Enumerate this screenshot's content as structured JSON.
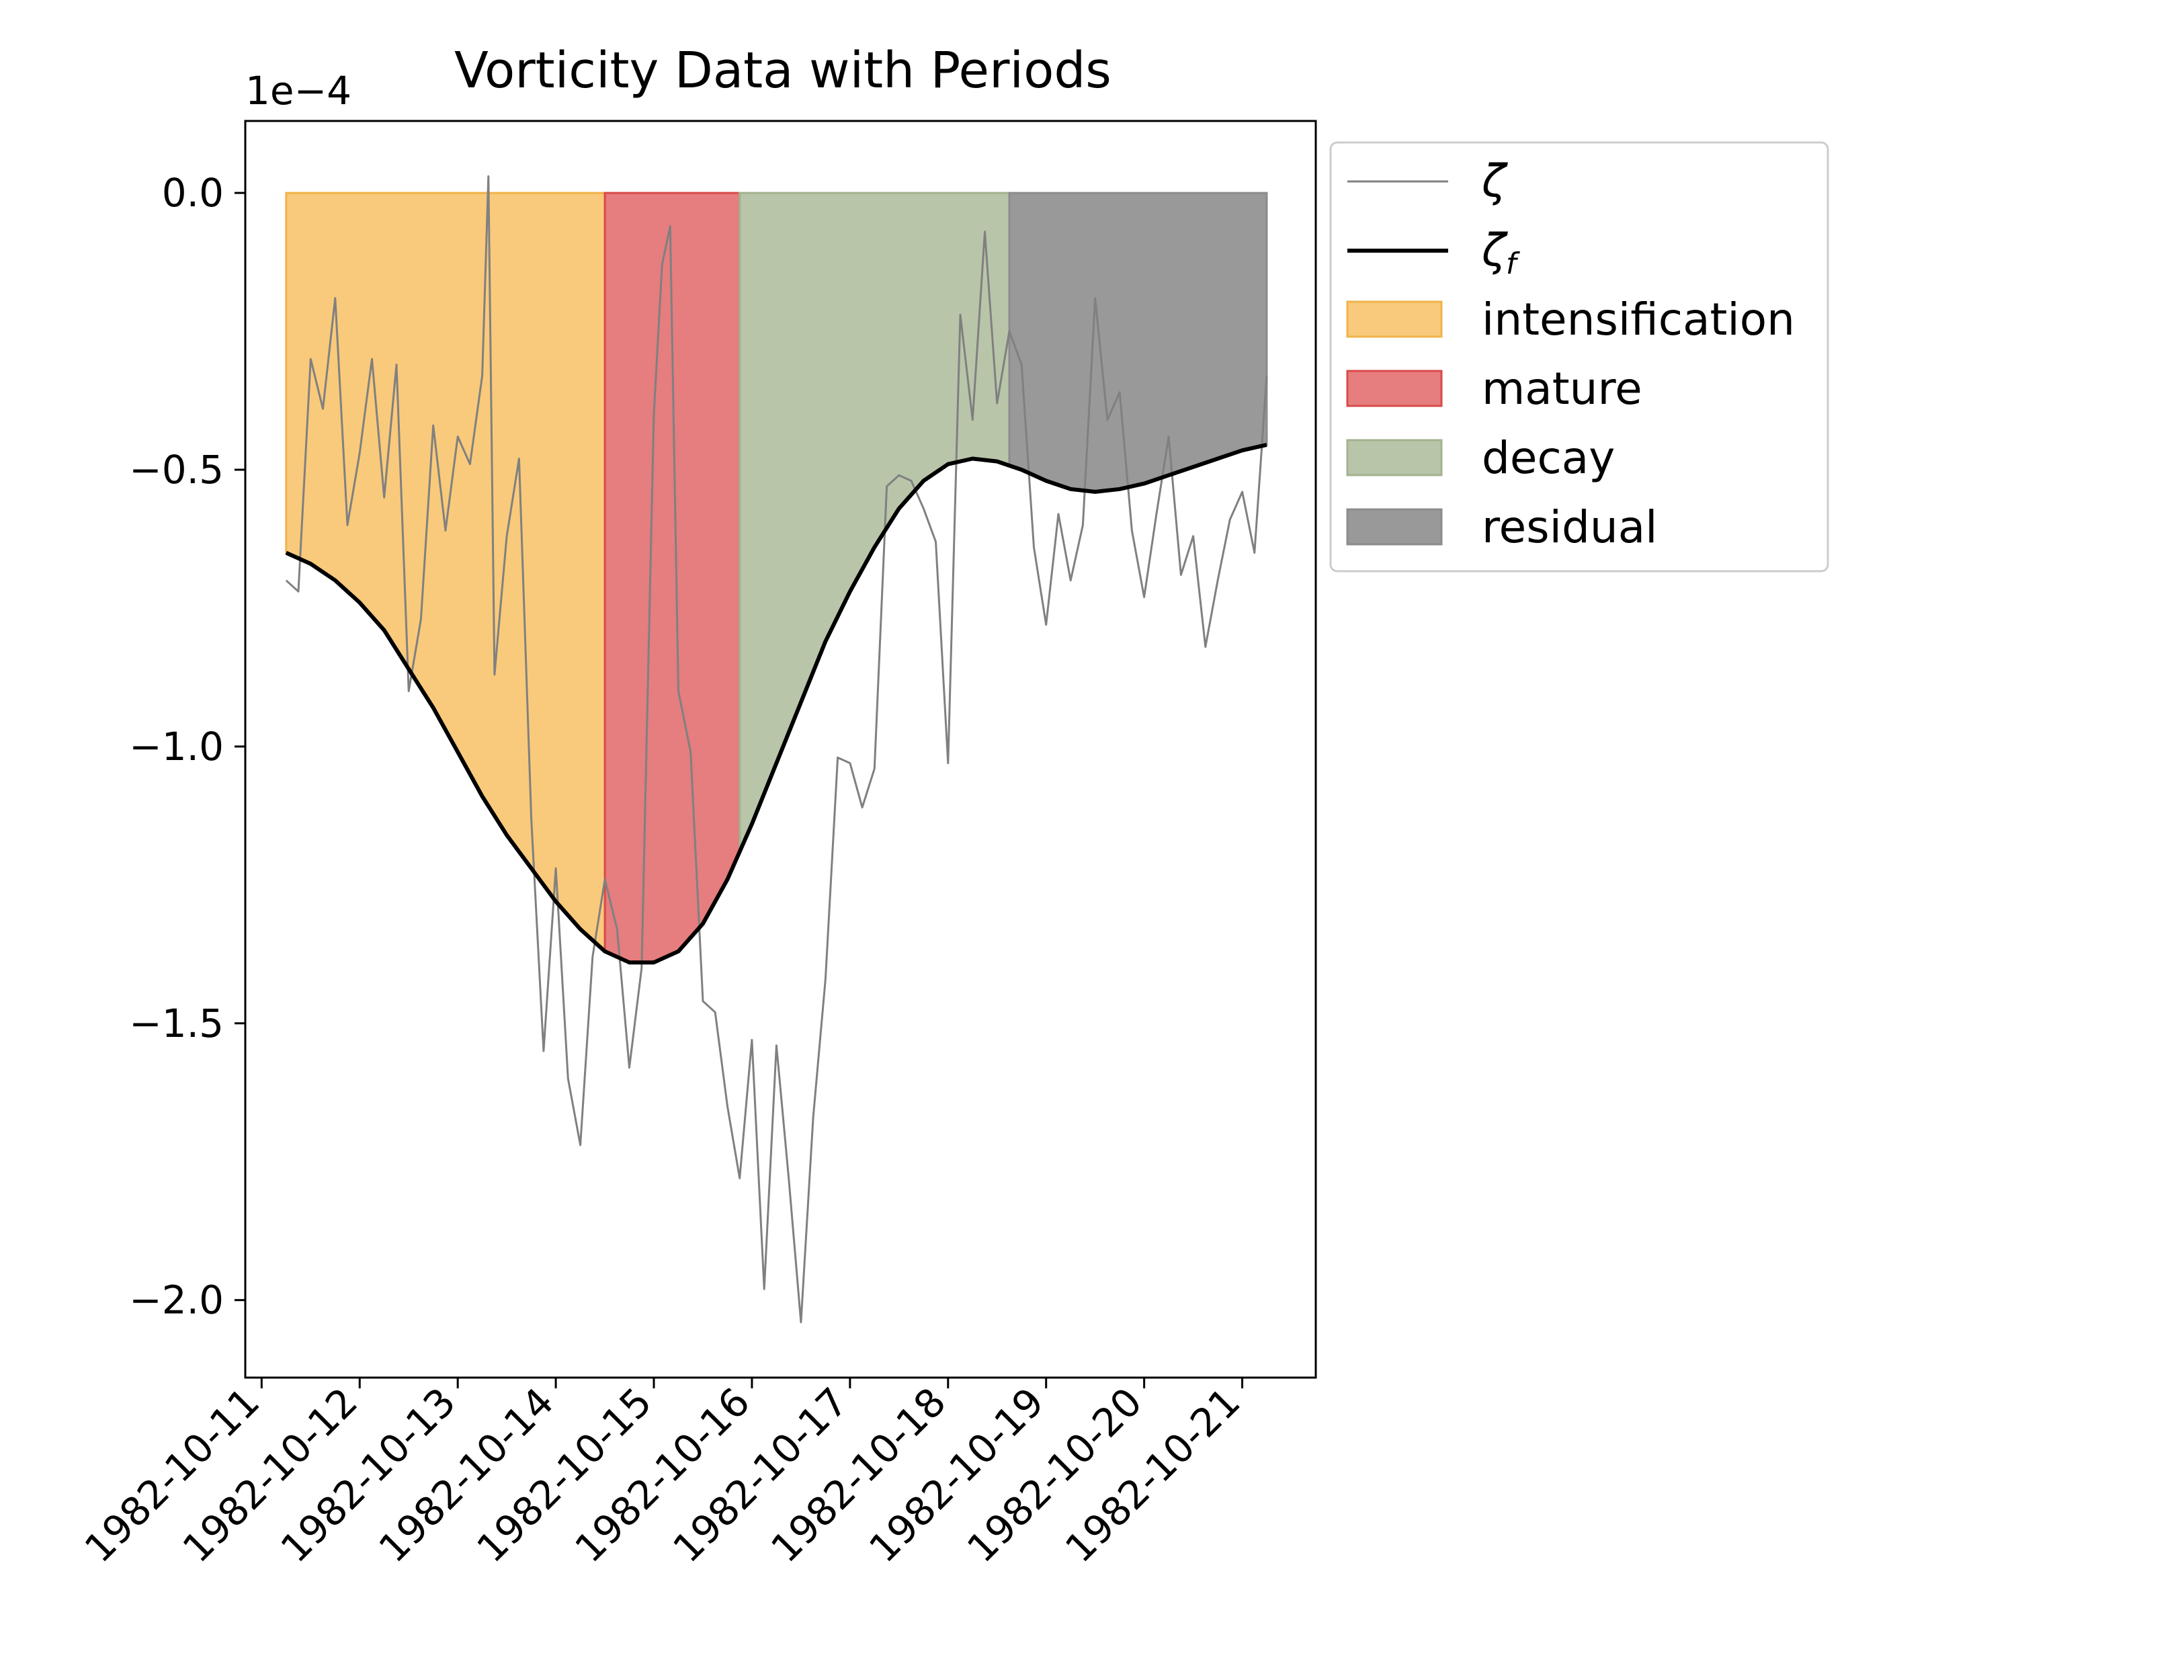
{
  "chart_data": {
    "type": "line",
    "title": "Vorticity Data with Periods",
    "xlabel": "",
    "ylabel": "",
    "y_scale_label": "1e−4",
    "x_axis": {
      "type": "date",
      "range": [
        "1982-10-10T20:00",
        "1982-10-21T18:00"
      ],
      "tick_labels": [
        "1982-10-11",
        "1982-10-12",
        "1982-10-13",
        "1982-10-14",
        "1982-10-15",
        "1982-10-16",
        "1982-10-17",
        "1982-10-18",
        "1982-10-19",
        "1982-10-20",
        "1982-10-21"
      ]
    },
    "y_axis": {
      "range": [
        -2.14,
        0.13
      ],
      "ticks": [
        0.0,
        -0.5,
        -1.0,
        -1.5,
        -2.0
      ],
      "tick_labels": [
        "0.0",
        "−0.5",
        "−1.0",
        "−1.5",
        "−2.0"
      ]
    },
    "grid": false,
    "legend": {
      "placement": "outside upper right"
    },
    "periods": [
      {
        "name": "intensification",
        "start": "1982-10-11T06:00",
        "end": "1982-10-14T12:00",
        "color": "#f5a623",
        "edge": "#f0b34a"
      },
      {
        "name": "mature",
        "start": "1982-10-14T12:00",
        "end": "1982-10-15T21:00",
        "color": "#d62728",
        "edge": "#d94a4a"
      },
      {
        "name": "decay",
        "start": "1982-10-15T21:00",
        "end": "1982-10-18T15:00",
        "color": "#8a9e70",
        "edge": "#a3b38f"
      },
      {
        "name": "residual",
        "start": "1982-10-18T15:00",
        "end": "1982-10-21T06:00",
        "color": "#555555",
        "edge": "#8c8c8c"
      }
    ],
    "series": [
      {
        "name": "ζ",
        "color": "#808080",
        "points": [
          [
            "1982-10-11T06:00",
            -0.7
          ],
          [
            "1982-10-11T09:00",
            -0.72
          ],
          [
            "1982-10-11T12:00",
            -0.3
          ],
          [
            "1982-10-11T15:00",
            -0.39
          ],
          [
            "1982-10-11T18:00",
            -0.19
          ],
          [
            "1982-10-11T21:00",
            -0.6
          ],
          [
            "1982-10-12T00:00",
            -0.47
          ],
          [
            "1982-10-12T03:00",
            -0.3
          ],
          [
            "1982-10-12T06:00",
            -0.55
          ],
          [
            "1982-10-12T09:00",
            -0.31
          ],
          [
            "1982-10-12T12:00",
            -0.9
          ],
          [
            "1982-10-12T15:00",
            -0.77
          ],
          [
            "1982-10-12T18:00",
            -0.42
          ],
          [
            "1982-10-12T21:00",
            -0.61
          ],
          [
            "1982-10-13T00:00",
            -0.44
          ],
          [
            "1982-10-13T03:00",
            -0.49
          ],
          [
            "1982-10-13T06:00",
            -0.33
          ],
          [
            "1982-10-13T07:30",
            0.03
          ],
          [
            "1982-10-13T09:00",
            -0.87
          ],
          [
            "1982-10-13T12:00",
            -0.62
          ],
          [
            "1982-10-13T15:00",
            -0.48
          ],
          [
            "1982-10-13T18:00",
            -1.13
          ],
          [
            "1982-10-13T21:00",
            -1.55
          ],
          [
            "1982-10-14T00:00",
            -1.22
          ],
          [
            "1982-10-14T03:00",
            -1.6
          ],
          [
            "1982-10-14T06:00",
            -1.72
          ],
          [
            "1982-10-14T09:00",
            -1.38
          ],
          [
            "1982-10-14T12:00",
            -1.24
          ],
          [
            "1982-10-14T15:00",
            -1.33
          ],
          [
            "1982-10-14T18:00",
            -1.58
          ],
          [
            "1982-10-14T21:00",
            -1.4
          ],
          [
            "1982-10-15T00:00",
            -0.4
          ],
          [
            "1982-10-15T02:00",
            -0.13
          ],
          [
            "1982-10-15T04:00",
            -0.06
          ],
          [
            "1982-10-15T06:00",
            -0.9
          ],
          [
            "1982-10-15T09:00",
            -1.01
          ],
          [
            "1982-10-15T12:00",
            -1.46
          ],
          [
            "1982-10-15T15:00",
            -1.48
          ],
          [
            "1982-10-15T18:00",
            -1.65
          ],
          [
            "1982-10-15T21:00",
            -1.78
          ],
          [
            "1982-10-16T00:00",
            -1.53
          ],
          [
            "1982-10-16T03:00",
            -1.98
          ],
          [
            "1982-10-16T06:00",
            -1.54
          ],
          [
            "1982-10-16T09:00",
            -1.78
          ],
          [
            "1982-10-16T12:00",
            -2.04
          ],
          [
            "1982-10-16T15:00",
            -1.67
          ],
          [
            "1982-10-16T18:00",
            -1.42
          ],
          [
            "1982-10-16T21:00",
            -1.02
          ],
          [
            "1982-10-17T00:00",
            -1.03
          ],
          [
            "1982-10-17T03:00",
            -1.11
          ],
          [
            "1982-10-17T06:00",
            -1.04
          ],
          [
            "1982-10-17T09:00",
            -0.53
          ],
          [
            "1982-10-17T12:00",
            -0.51
          ],
          [
            "1982-10-17T15:00",
            -0.52
          ],
          [
            "1982-10-17T18:00",
            -0.57
          ],
          [
            "1982-10-17T21:00",
            -0.63
          ],
          [
            "1982-10-18T00:00",
            -1.03
          ],
          [
            "1982-10-18T03:00",
            -0.22
          ],
          [
            "1982-10-18T06:00",
            -0.41
          ],
          [
            "1982-10-18T09:00",
            -0.07
          ],
          [
            "1982-10-18T12:00",
            -0.38
          ],
          [
            "1982-10-18T15:00",
            -0.25
          ],
          [
            "1982-10-18T18:00",
            -0.31
          ],
          [
            "1982-10-18T21:00",
            -0.64
          ],
          [
            "1982-10-19T00:00",
            -0.78
          ],
          [
            "1982-10-19T03:00",
            -0.58
          ],
          [
            "1982-10-19T06:00",
            -0.7
          ],
          [
            "1982-10-19T09:00",
            -0.6
          ],
          [
            "1982-10-19T12:00",
            -0.19
          ],
          [
            "1982-10-19T15:00",
            -0.41
          ],
          [
            "1982-10-19T18:00",
            -0.36
          ],
          [
            "1982-10-19T21:00",
            -0.61
          ],
          [
            "1982-10-20T00:00",
            -0.73
          ],
          [
            "1982-10-20T03:00",
            -0.58
          ],
          [
            "1982-10-20T06:00",
            -0.44
          ],
          [
            "1982-10-20T09:00",
            -0.69
          ],
          [
            "1982-10-20T12:00",
            -0.62
          ],
          [
            "1982-10-20T15:00",
            -0.82
          ],
          [
            "1982-10-20T18:00",
            -0.7
          ],
          [
            "1982-10-20T21:00",
            -0.59
          ],
          [
            "1982-10-21T00:00",
            -0.54
          ],
          [
            "1982-10-21T03:00",
            -0.65
          ],
          [
            "1982-10-21T06:00",
            -0.33
          ]
        ]
      },
      {
        "name": "ζ_f",
        "color": "#000000",
        "points": [
          [
            "1982-10-11T06:00",
            -0.65
          ],
          [
            "1982-10-11T12:00",
            -0.67
          ],
          [
            "1982-10-11T18:00",
            -0.7
          ],
          [
            "1982-10-12T00:00",
            -0.74
          ],
          [
            "1982-10-12T06:00",
            -0.79
          ],
          [
            "1982-10-12T12:00",
            -0.86
          ],
          [
            "1982-10-12T18:00",
            -0.93
          ],
          [
            "1982-10-13T00:00",
            -1.01
          ],
          [
            "1982-10-13T06:00",
            -1.09
          ],
          [
            "1982-10-13T12:00",
            -1.16
          ],
          [
            "1982-10-13T18:00",
            -1.22
          ],
          [
            "1982-10-14T00:00",
            -1.28
          ],
          [
            "1982-10-14T06:00",
            -1.33
          ],
          [
            "1982-10-14T12:00",
            -1.37
          ],
          [
            "1982-10-14T18:00",
            -1.39
          ],
          [
            "1982-10-15T00:00",
            -1.39
          ],
          [
            "1982-10-15T06:00",
            -1.37
          ],
          [
            "1982-10-15T12:00",
            -1.32
          ],
          [
            "1982-10-15T18:00",
            -1.24
          ],
          [
            "1982-10-16T00:00",
            -1.14
          ],
          [
            "1982-10-16T06:00",
            -1.03
          ],
          [
            "1982-10-16T12:00",
            -0.92
          ],
          [
            "1982-10-16T18:00",
            -0.81
          ],
          [
            "1982-10-17T00:00",
            -0.72
          ],
          [
            "1982-10-17T06:00",
            -0.64
          ],
          [
            "1982-10-17T12:00",
            -0.57
          ],
          [
            "1982-10-17T18:00",
            -0.52
          ],
          [
            "1982-10-18T00:00",
            -0.49
          ],
          [
            "1982-10-18T06:00",
            -0.48
          ],
          [
            "1982-10-18T12:00",
            -0.485
          ],
          [
            "1982-10-18T18:00",
            -0.5
          ],
          [
            "1982-10-19T00:00",
            -0.52
          ],
          [
            "1982-10-19T06:00",
            -0.535
          ],
          [
            "1982-10-19T12:00",
            -0.54
          ],
          [
            "1982-10-19T18:00",
            -0.535
          ],
          [
            "1982-10-20T00:00",
            -0.525
          ],
          [
            "1982-10-20T06:00",
            -0.51
          ],
          [
            "1982-10-20T12:00",
            -0.495
          ],
          [
            "1982-10-20T18:00",
            -0.48
          ],
          [
            "1982-10-21T00:00",
            -0.465
          ],
          [
            "1982-10-21T06:00",
            -0.455
          ]
        ]
      }
    ]
  }
}
